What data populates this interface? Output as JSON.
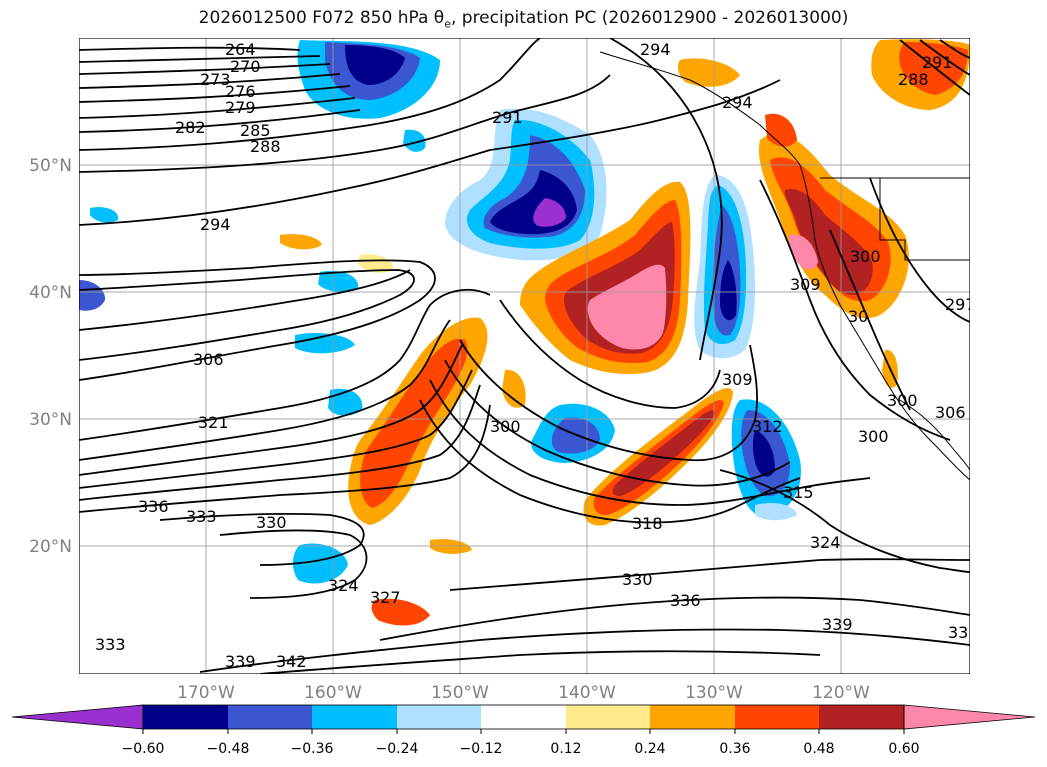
{
  "title": {
    "prefix": "2026012500 F072 850 hPa θ",
    "sub": "e",
    "suffix": ", precipitation PC (2026012900 - 2026013000)"
  },
  "map": {
    "lat_labels": [
      "50°N",
      "40°N",
      "30°N",
      "20°N"
    ],
    "lon_labels": [
      "170°W",
      "160°W",
      "150°W",
      "140°W",
      "130°W",
      "120°W"
    ],
    "grid": true
  },
  "contour_labels": [
    "264",
    "270",
    "273",
    "276",
    "279",
    "282",
    "285",
    "288",
    "291",
    "294",
    "294",
    "294",
    "306",
    "321",
    "336",
    "333",
    "330",
    "324",
    "327",
    "333",
    "339",
    "342",
    "336",
    "330",
    "318",
    "315",
    "324",
    "339",
    "33",
    "300",
    "309",
    "312",
    "300",
    "300",
    "300",
    "306",
    "309",
    "297",
    "288",
    "291",
    "30"
  ],
  "colorbar": {
    "ticks": [
      "−0.60",
      "−0.48",
      "−0.36",
      "−0.24",
      "−0.12",
      "0.12",
      "0.24",
      "0.36",
      "0.48",
      "0.60"
    ],
    "colors": [
      "#9b30d0",
      "#00008b",
      "#3a56d0",
      "#00bfff",
      "#b0e0ff",
      "#ffffff",
      "#ffea8c",
      "#ffa500",
      "#ff4500",
      "#b22222",
      "#ff88aa"
    ]
  }
}
